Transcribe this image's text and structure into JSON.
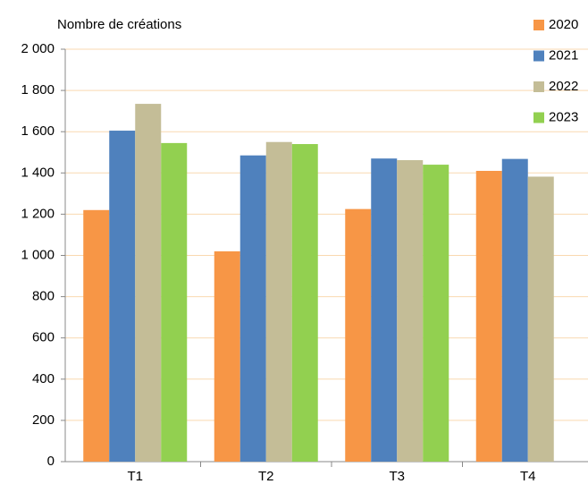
{
  "chart_data": {
    "type": "bar",
    "y_label": "Nombre de créations",
    "categories": [
      "T1",
      "T2",
      "T3",
      "T4"
    ],
    "series": [
      {
        "name": "2020",
        "color": "#f79646",
        "values": [
          1220,
          1020,
          1225,
          1410
        ]
      },
      {
        "name": "2021",
        "color": "#4f81bd",
        "values": [
          1605,
          1485,
          1470,
          1468
        ]
      },
      {
        "name": "2022",
        "color": "#c4bd97",
        "values": [
          1735,
          1550,
          1462,
          1382
        ]
      },
      {
        "name": "2023",
        "color": "#92d050",
        "values": [
          1545,
          1540,
          1440,
          null
        ]
      }
    ],
    "ylim": [
      0,
      2000
    ],
    "yticks": [
      0,
      200,
      400,
      600,
      800,
      {
        "value": 1000,
        "label": "1 000"
      },
      {
        "value": 1200,
        "label": "1 200"
      },
      {
        "value": 1400,
        "label": "1 400"
      },
      {
        "value": 1600,
        "label": "1 600"
      },
      {
        "value": 1800,
        "label": "1 800"
      },
      {
        "value": 2000,
        "label": "2 000"
      }
    ],
    "grid": true,
    "legend": "top-right"
  }
}
